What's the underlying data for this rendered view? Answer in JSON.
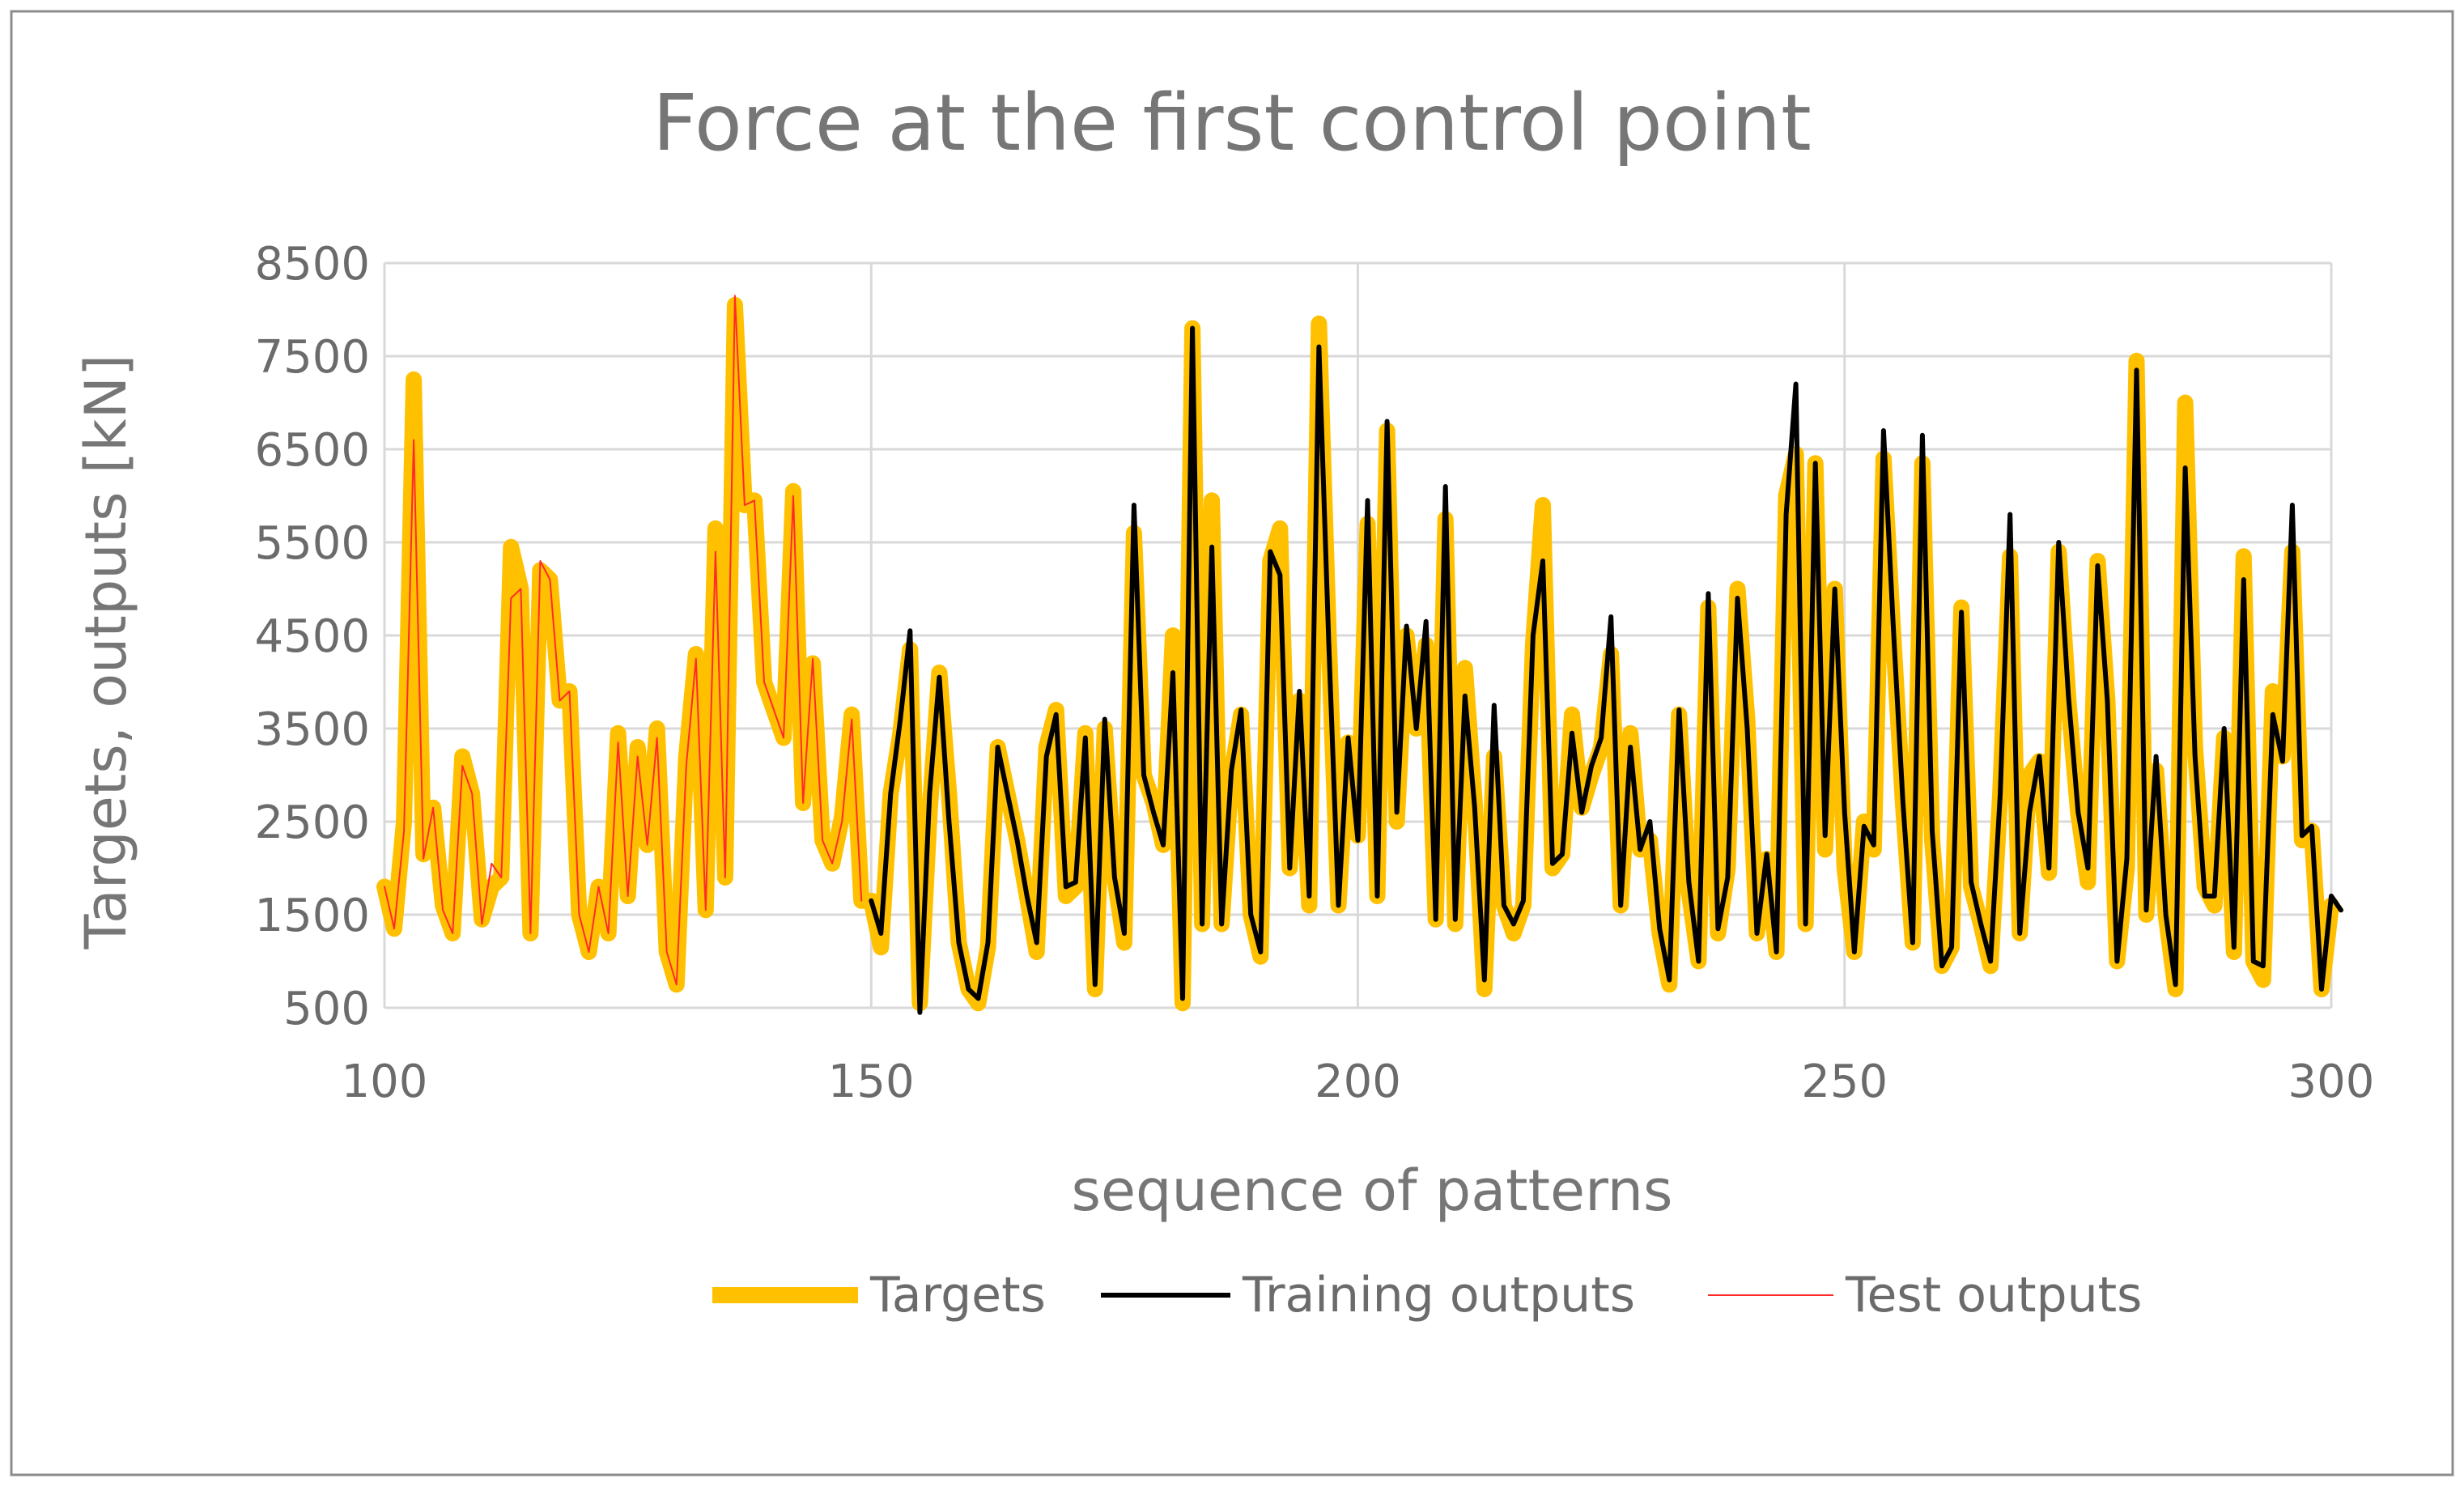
{
  "chart_data": {
    "type": "line",
    "title": "Force at the first control point",
    "xlabel": "sequence of patterns",
    "ylabel": "Targets, outputs [kN]",
    "xlim": [
      100,
      300
    ],
    "ylim": [
      500,
      8500
    ],
    "xticks": [
      100,
      150,
      200,
      250,
      300
    ],
    "yticks": [
      500,
      1500,
      2500,
      3500,
      4500,
      5500,
      6500,
      7500,
      8500
    ],
    "grid": "vertical",
    "legend_position": "bottom",
    "series": [
      {
        "name": "Targets",
        "color": "#FFC000",
        "x_start": 100,
        "values": [
          1800,
          1350,
          2500,
          7250,
          2150,
          2650,
          1600,
          1300,
          3200,
          2800,
          1450,
          1800,
          1900,
          5450,
          5000,
          1300,
          5200,
          5100,
          3800,
          3900,
          1500,
          1100,
          1800,
          1300,
          3450,
          1700,
          3300,
          2250,
          3500,
          1100,
          750,
          3200,
          4300,
          1550,
          5650,
          1900,
          8050,
          5900,
          5950,
          4000,
          3700,
          3400,
          6050,
          2700,
          4200,
          2300,
          2050,
          2550,
          3650,
          1650,
          1650,
          1150,
          2800,
          3450,
          4350,
          550,
          2600,
          4100,
          2800,
          1200,
          700,
          550,
          1150,
          3300,
          2800,
          2300,
          1700,
          1100,
          3300,
          3700,
          1700,
          1800,
          3450,
          700,
          3500,
          1900,
          1200,
          5600,
          3000,
          2700,
          2250,
          4500,
          550,
          7800,
          1400,
          5950,
          1400,
          3000,
          3650,
          1500,
          1050,
          5300,
          5650,
          2000,
          3800,
          1600,
          7850,
          4500,
          1600,
          3350,
          2350,
          5700,
          1700,
          6700,
          2500,
          4500,
          3500,
          4400,
          1450,
          5750,
          1400,
          4150,
          2700,
          700,
          3200,
          1600,
          1300,
          1600,
          4400,
          5900,
          2000,
          2150,
          3650,
          2650,
          3000,
          3300,
          4300,
          1600,
          3450,
          2200,
          2300,
          1300,
          750,
          3650,
          1750,
          1000,
          4800,
          1300,
          2000,
          5000,
          3600,
          1300,
          2100,
          1100,
          6000,
          6450,
          1400,
          6350,
          2200,
          5000,
          2000,
          1100,
          2500,
          2200,
          6400,
          4500,
          2700,
          1200,
          6350,
          2300,
          950,
          1150,
          4800,
          1800,
          1400,
          950,
          2800,
          5350,
          1300,
          3000,
          3150,
          1950,
          5400,
          3800,
          2600,
          1850,
          5300,
          3800,
          1000,
          2000,
          7450,
          1500,
          3050,
          1500,
          700,
          7000,
          3300,
          1800,
          1600,
          3400,
          1100,
          5350,
          1000,
          800,
          3900,
          3200,
          5400,
          2300,
          2400,
          700,
          1600
        ]
      },
      {
        "name": "Training outputs",
        "color": "#000000",
        "x_start": 150,
        "values": [
          1650,
          1300,
          2800,
          3600,
          4550,
          450,
          2800,
          4050,
          2500,
          1200,
          700,
          600,
          1200,
          3300,
          2800,
          2300,
          1700,
          1200,
          3200,
          3650,
          1800,
          1850,
          3400,
          750,
          3600,
          1900,
          1300,
          5900,
          3000,
          2600,
          2250,
          4100,
          600,
          7800,
          1400,
          5450,
          1400,
          3050,
          3700,
          1500,
          1100,
          5400,
          5150,
          2000,
          3900,
          1700,
          7600,
          4450,
          1600,
          3400,
          2300,
          5950,
          1700,
          6800,
          2600,
          4600,
          3500,
          4650,
          1450,
          6100,
          1450,
          3850,
          2650,
          800,
          3750,
          1600,
          1400,
          1650,
          4500,
          5300,
          2050,
          2150,
          3450,
          2600,
          3100,
          3400,
          4700,
          1600,
          3300,
          2200,
          2500,
          1350,
          800,
          3700,
          1850,
          1000,
          4950,
          1350,
          1900,
          4900,
          3500,
          1300,
          2150,
          1100,
          5800,
          7200,
          1400,
          6350,
          2350,
          5000,
          2600,
          1100,
          2450,
          2250,
          6700,
          4600,
          2700,
          1200,
          6650,
          2400,
          950,
          1150,
          4750,
          1850,
          1400,
          1000,
          2800,
          5800,
          1300,
          2600,
          3200,
          2000,
          5500,
          3850,
          2600,
          2000,
          5250,
          3800,
          1000,
          2100,
          7350,
          1550,
          3200,
          1500,
          750,
          6300,
          3200,
          1700,
          1700,
          3500,
          1150,
          5100,
          1000,
          950,
          3650,
          3150,
          5900,
          2350,
          2450,
          700,
          1700,
          1550
        ]
      },
      {
        "name": "Test outputs",
        "color": "#FF2B2B",
        "x_start": 100,
        "values": [
          1800,
          1350,
          2400,
          6600,
          2100,
          2650,
          1550,
          1300,
          3100,
          2800,
          1400,
          2050,
          1900,
          4900,
          5000,
          1300,
          5300,
          5100,
          3800,
          3900,
          1500,
          1100,
          1800,
          1300,
          3350,
          1700,
          3200,
          2250,
          3400,
          1100,
          750,
          3100,
          4250,
          1550,
          5400,
          1900,
          8150,
          5900,
          5950,
          4000,
          3700,
          3400,
          6000,
          2700,
          4250,
          2300,
          2050,
          2500,
          3600,
          1650
        ]
      }
    ]
  }
}
